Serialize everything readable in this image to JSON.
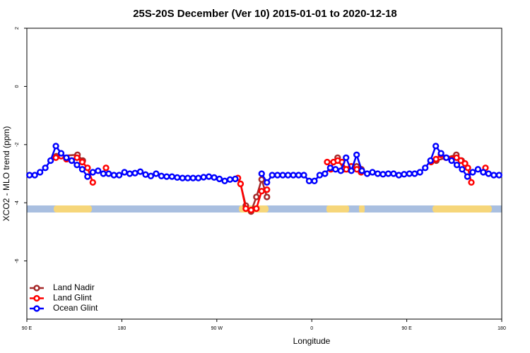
{
  "chart_data": {
    "type": "line",
    "title": "25S-20S December (Ver 10)   2015-01-01 to 2020-12-18",
    "x_label": "Longitude",
    "y_label": "XCO2 - MLO trend (ppm)",
    "xlim": [
      90,
      540
    ],
    "ylim": [
      -8,
      2
    ],
    "xticks": [
      {
        "value": 90,
        "label": "90 E"
      },
      180,
      {
        "value": 270,
        "label": "90 W"
      },
      {
        "value": 360,
        "label": "0"
      },
      {
        "value": 450,
        "label": "90 E"
      },
      {
        "value": 540,
        "label": "180"
      }
    ],
    "yticks": [
      -6,
      -4,
      -2,
      0,
      2
    ],
    "legend": "bottom-left",
    "series": [
      {
        "name": "Land Nadir",
        "color": "#a52a2a",
        "x": [
          118,
          138,
          143,
          null,
          292.5,
          297.5,
          302.5,
          307.5,
          312.5,
          317.5,
          null,
          384.5,
          390,
          395,
          402.5,
          407,
          null,
          478,
          497,
          502
        ],
        "values": [
          -2.4,
          -2.35,
          -2.55,
          null,
          -3.35,
          -4.1,
          -4.3,
          -3.8,
          -3.2,
          -3.8,
          null,
          -2.45,
          -2.85,
          -2.85,
          -2.75,
          -2.85,
          null,
          -2.55,
          -2.35,
          -2.55
        ]
      },
      {
        "name": "Land Glint",
        "color": "#ff0000",
        "x": [
          117.5,
          122.5,
          127.5,
          132.5,
          137.5,
          142.5,
          147.5,
          152.5,
          null,
          165,
          null,
          290,
          292.5,
          297.5,
          302.5,
          307.5,
          312.5,
          317.5,
          null,
          374.6,
          378,
          380.6,
          384.6,
          388.7,
          392.7,
          397.4,
          402.7,
          406.7,
          null,
          473,
          477.7,
          482.4,
          487.1,
          492.5,
          497.2,
          501.2,
          505.2,
          507.9,
          511.2,
          null,
          524.6
        ],
        "values": [
          -2.45,
          -2.4,
          -2.5,
          -2.55,
          -2.45,
          -2.6,
          -2.8,
          -3.3,
          null,
          -2.8,
          null,
          -3.15,
          -3.35,
          -4.2,
          -4.25,
          -4.2,
          -3.6,
          -3.55,
          null,
          -2.6,
          -2.85,
          -2.6,
          -2.55,
          -2.6,
          -2.85,
          -2.75,
          -2.85,
          -2.95,
          null,
          -2.6,
          -2.5,
          -2.35,
          -2.45,
          -2.5,
          -2.45,
          -2.55,
          -2.65,
          -2.8,
          -3.3,
          null,
          -2.8
        ]
      },
      {
        "name": "Ocean Glint",
        "color": "#0000ff",
        "x": [
          92.5,
          97.5,
          102.5,
          107.5,
          112.5,
          117.5,
          122.5,
          127.5,
          132.5,
          137.5,
          142.5,
          147.5,
          152.5,
          157.5,
          162.5,
          167.5,
          172.5,
          177.5,
          182.5,
          187.5,
          192.5,
          197.5,
          202.5,
          207.5,
          212.5,
          217.5,
          222.5,
          227.5,
          232.5,
          237.5,
          242.5,
          247.5,
          252.5,
          257.5,
          262.5,
          267.5,
          272.5,
          277.5,
          282.5,
          287.5,
          null,
          312.5,
          317.5,
          322.5,
          327.5,
          332.5,
          337.5,
          342.5,
          347.5,
          352.5,
          357.5,
          362.5,
          367.5,
          372.5,
          377.5,
          382.5,
          387.5,
          392.5,
          397.5,
          402.5,
          407.5,
          412.5,
          417.5,
          422.5,
          427.5,
          432.5,
          437.5,
          442.5,
          447.5,
          452.5,
          457.5,
          462.5,
          467.5,
          472.5,
          477.5,
          482.5,
          487.5,
          492.5,
          497.5,
          502.5,
          507.5,
          512.5,
          517.5,
          522.5,
          527.5,
          532.5,
          537.5
        ],
        "values": [
          -3.05,
          -3.05,
          -2.95,
          -2.8,
          -2.55,
          -2.05,
          -2.3,
          -2.45,
          -2.55,
          -2.7,
          -2.85,
          -3.1,
          -2.95,
          -2.9,
          -3.0,
          -3.0,
          -3.05,
          -3.05,
          -2.95,
          -3.0,
          -2.98,
          -2.93,
          -3.03,
          -3.08,
          -3.0,
          -3.08,
          -3.1,
          -3.1,
          -3.13,
          -3.15,
          -3.15,
          -3.15,
          -3.15,
          -3.12,
          -3.1,
          -3.13,
          -3.18,
          -3.25,
          -3.2,
          -3.18,
          null,
          -3.0,
          -3.3,
          -3.05,
          -3.05,
          -3.05,
          -3.05,
          -3.05,
          -3.05,
          -3.05,
          -3.25,
          -3.25,
          -3.05,
          -3.0,
          -2.8,
          -2.85,
          -2.9,
          -2.45,
          -2.9,
          -2.35,
          -2.9,
          -3.0,
          -2.95,
          -3.0,
          -3.02,
          -3.0,
          -3.0,
          -3.05,
          -3.02,
          -3.0,
          -3.0,
          -2.95,
          -2.8,
          -2.55,
          -2.05,
          -2.3,
          -2.45,
          -2.55,
          -2.7,
          -2.85,
          -3.1,
          -2.95,
          -2.85,
          -2.95,
          -3.0,
          -3.05,
          -3.05
        ]
      }
    ]
  }
}
